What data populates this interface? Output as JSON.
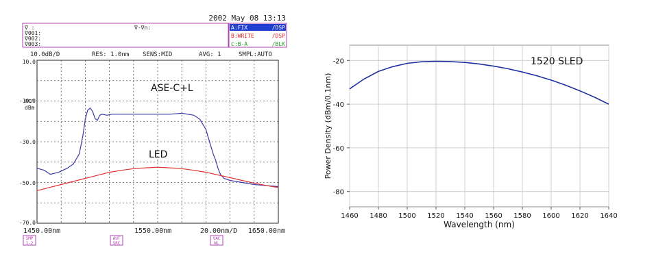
{
  "osa": {
    "datetime": "2002 May 08 13:13",
    "marker_box": {
      "line0": "∇   :",
      "line0_right": "∇-∇n:",
      "line1": "∇001:",
      "line2": "∇002:",
      "line3": "∇003:"
    },
    "traces": [
      {
        "label": "A:FIX",
        "mode": "/DSP",
        "color": "#ffffff",
        "bg": "#2040d0",
        "mode_color": "#ffffff"
      },
      {
        "label": "B:WRITE",
        "mode": "/DSP",
        "color": "#e02020",
        "bg": "#ffffff",
        "mode_color": "#e02020"
      },
      {
        "label": "C:B-A",
        "mode": "/BLK",
        "color": "#20a020",
        "bg": "#ffffff",
        "mode_color": "#20a020"
      }
    ],
    "settings": {
      "scale": "10.0dB/D",
      "res": "RES: 1.0nm",
      "sens": "SENS:MID",
      "avg": "AVG:  1",
      "smpl": "SMPL:AUTO"
    },
    "yticks": [
      "10.0",
      "-10.0",
      "-30.0",
      "-50.0",
      "-70.0"
    ],
    "ref_label": "REF",
    "unit_label": "dBm",
    "xlabels": {
      "start": "1450.00nm",
      "center": "1550.00nm",
      "span": "20.00nm/D",
      "stop": "1650.00nm"
    },
    "softkeys": [
      {
        "top": "SMP",
        "bottom": "1-2"
      },
      {
        "top": "AUT",
        "bottom": "SRC"
      },
      {
        "top": "VAC",
        "bottom": "WL"
      }
    ]
  },
  "chart_data": [
    {
      "type": "line",
      "title": "",
      "xlabel": "",
      "ylabel": "",
      "xlim": [
        1450,
        1650
      ],
      "ylim": [
        -70,
        10
      ],
      "grid": true,
      "series": [
        {
          "name": "ASE-C+L",
          "color": "#3a3aa8",
          "x": [
            1450,
            1456,
            1461,
            1468,
            1475,
            1480,
            1483,
            1485,
            1486,
            1488,
            1490,
            1492,
            1494,
            1496,
            1498,
            1500,
            1502,
            1504,
            1508,
            1512,
            1520,
            1530,
            1540,
            1550,
            1560,
            1570,
            1580,
            1585,
            1590,
            1594,
            1596,
            1598,
            1600,
            1602,
            1605,
            1610,
            1620,
            1630,
            1640,
            1650
          ],
          "y": [
            -43,
            -44,
            -46,
            -45,
            -43,
            -41,
            -38,
            -36,
            -33,
            -27,
            -19,
            -14.5,
            -13.5,
            -15,
            -18.5,
            -19.5,
            -17,
            -16.5,
            -17,
            -16.5,
            -16.5,
            -16.5,
            -16.5,
            -16.5,
            -16.5,
            -16,
            -17,
            -19,
            -24,
            -32,
            -36,
            -39,
            -43,
            -46,
            -48,
            -49,
            -50,
            -51,
            -51.5,
            -52
          ]
        },
        {
          "name": "LED",
          "color": "#e03030",
          "x": [
            1450,
            1460,
            1470,
            1480,
            1490,
            1500,
            1510,
            1520,
            1530,
            1540,
            1550,
            1560,
            1570,
            1580,
            1590,
            1600,
            1610,
            1620,
            1630,
            1640,
            1650
          ],
          "y": [
            -54,
            -52.5,
            -51,
            -49.5,
            -48,
            -46.5,
            -45,
            -44,
            -43.2,
            -42.8,
            -42.5,
            -42.8,
            -43.2,
            -44,
            -45,
            -46.3,
            -47.6,
            -49,
            -50.3,
            -51.5,
            -52.5
          ]
        }
      ],
      "annotations": [
        "ASE-C+L",
        "LED"
      ]
    },
    {
      "type": "line",
      "title": "",
      "xlabel": "Wavelength (nm)",
      "ylabel": "Power Density (dBm/0.1nm)",
      "xlim": [
        1460,
        1640
      ],
      "ylim": [
        -87,
        -13
      ],
      "xticks": [
        1460,
        1480,
        1500,
        1520,
        1540,
        1560,
        1580,
        1600,
        1620,
        1640
      ],
      "yticks": [
        -20,
        -40,
        -60,
        -80
      ],
      "grid": true,
      "series": [
        {
          "name": "1520 SLED",
          "color": "#2030a0",
          "x": [
            1460,
            1470,
            1480,
            1490,
            1500,
            1510,
            1520,
            1530,
            1540,
            1550,
            1560,
            1570,
            1580,
            1590,
            1600,
            1610,
            1620,
            1630,
            1640
          ],
          "y": [
            -33,
            -28.5,
            -25,
            -22.8,
            -21.3,
            -20.6,
            -20.4,
            -20.5,
            -20.9,
            -21.6,
            -22.6,
            -23.8,
            -25.3,
            -27,
            -29,
            -31.3,
            -33.9,
            -36.8,
            -40
          ]
        }
      ],
      "annotations": [
        "1520 SLED"
      ]
    }
  ]
}
